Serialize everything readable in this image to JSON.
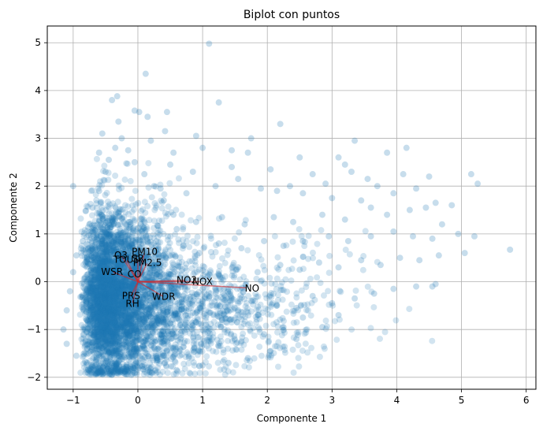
{
  "chart_data": {
    "type": "scatter",
    "title": "Biplot con puntos",
    "xlabel": "Componente 1",
    "ylabel": "Componente 2",
    "xlim": [
      -1.4,
      6.15
    ],
    "ylim": [
      -2.25,
      5.35
    ],
    "xticks": [
      -1,
      0,
      1,
      2,
      3,
      4,
      5,
      6
    ],
    "yticks": [
      -2,
      -1,
      0,
      1,
      2,
      3,
      4,
      5
    ],
    "grid": true,
    "point_color": "#1f77b4",
    "point_alpha": 0.2,
    "vector_color": "#d62728",
    "points": [
      [
        1.1,
        4.98
      ],
      [
        0.12,
        4.35
      ],
      [
        -0.32,
        3.88
      ],
      [
        -0.4,
        3.8
      ],
      [
        -0.05,
        3.58
      ],
      [
        0.02,
        3.55
      ],
      [
        0.45,
        3.55
      ],
      [
        0.42,
        3.15
      ],
      [
        1.25,
        3.75
      ],
      [
        2.2,
        3.3
      ],
      [
        3.35,
        2.95
      ],
      [
        -0.55,
        3.1
      ],
      [
        0.9,
        3.05
      ],
      [
        1.75,
        3.0
      ],
      [
        0.2,
        2.95
      ],
      [
        0.55,
        2.7
      ],
      [
        1.0,
        2.8
      ],
      [
        1.45,
        2.75
      ],
      [
        1.7,
        2.7
      ],
      [
        2.5,
        2.6
      ],
      [
        3.1,
        2.6
      ],
      [
        3.85,
        2.7
      ],
      [
        4.15,
        2.8
      ],
      [
        0.85,
        2.3
      ],
      [
        1.45,
        2.4
      ],
      [
        2.05,
        2.35
      ],
      [
        2.7,
        2.25
      ],
      [
        3.2,
        2.45
      ],
      [
        3.3,
        2.3
      ],
      [
        3.55,
        2.15
      ],
      [
        4.1,
        2.25
      ],
      [
        4.5,
        2.2
      ],
      [
        5.15,
        2.25
      ],
      [
        5.25,
        2.05
      ],
      [
        4.3,
        1.95
      ],
      [
        3.95,
        1.85
      ],
      [
        3.45,
        1.7
      ],
      [
        3.0,
        1.75
      ],
      [
        2.55,
        1.85
      ],
      [
        2.15,
        1.9
      ],
      [
        1.9,
        1.95
      ],
      [
        1.2,
        2.0
      ],
      [
        0.75,
        1.85
      ],
      [
        0.35,
        1.95
      ],
      [
        4.6,
        1.65
      ],
      [
        4.85,
        1.6
      ],
      [
        4.45,
        1.55
      ],
      [
        4.2,
        1.5
      ],
      [
        3.85,
        1.4
      ],
      [
        3.6,
        1.55
      ],
      [
        3.2,
        1.3
      ],
      [
        2.85,
        1.4
      ],
      [
        2.4,
        1.25
      ],
      [
        2.1,
        1.35
      ],
      [
        1.65,
        1.2
      ],
      [
        1.3,
        1.35
      ],
      [
        0.9,
        1.25
      ],
      [
        0.6,
        1.1
      ],
      [
        4.7,
        1.2
      ],
      [
        4.95,
        1.0
      ],
      [
        5.2,
        0.95
      ],
      [
        4.55,
        0.9
      ],
      [
        4.25,
        0.95
      ],
      [
        3.95,
        1.05
      ],
      [
        3.6,
        0.95
      ],
      [
        3.25,
        0.85
      ],
      [
        2.95,
        0.95
      ],
      [
        2.55,
        0.85
      ],
      [
        2.25,
        0.75
      ],
      [
        1.95,
        0.85
      ],
      [
        1.6,
        0.7
      ],
      [
        1.25,
        0.8
      ],
      [
        0.95,
        0.6
      ],
      [
        0.7,
        0.75
      ],
      [
        5.75,
        0.67
      ],
      [
        5.05,
        0.6
      ],
      [
        4.65,
        0.55
      ],
      [
        4.35,
        0.45
      ],
      [
        4.05,
        0.5
      ],
      [
        3.75,
        0.35
      ],
      [
        3.45,
        0.45
      ],
      [
        3.1,
        0.3
      ],
      [
        2.8,
        0.4
      ],
      [
        2.5,
        0.25
      ],
      [
        2.2,
        0.35
      ],
      [
        1.85,
        0.2
      ],
      [
        1.55,
        0.3
      ],
      [
        1.25,
        0.15
      ],
      [
        0.95,
        0.25
      ],
      [
        4.6,
        -0.05
      ],
      [
        4.3,
        -0.1
      ],
      [
        4.55,
        -0.1
      ],
      [
        3.95,
        -0.15
      ],
      [
        3.65,
        -0.25
      ],
      [
        3.35,
        -0.35
      ],
      [
        3.0,
        -0.45
      ],
      [
        2.7,
        -0.3
      ],
      [
        2.45,
        -0.55
      ],
      [
        2.15,
        -0.5
      ],
      [
        1.85,
        -0.7
      ],
      [
        1.55,
        -0.6
      ],
      [
        1.3,
        -0.8
      ],
      [
        1.05,
        -0.9
      ],
      [
        0.75,
        -1.0
      ],
      [
        2.55,
        -0.75
      ],
      [
        2.25,
        -0.95
      ],
      [
        1.95,
        -1.1
      ],
      [
        1.6,
        -1.25
      ],
      [
        1.25,
        -1.35
      ],
      [
        0.95,
        -1.45
      ],
      [
        0.65,
        -1.55
      ],
      [
        0.3,
        -1.6
      ],
      [
        3.1,
        -0.7
      ],
      [
        2.85,
        -0.95
      ],
      [
        2.45,
        -1.2
      ],
      [
        2.05,
        -1.45
      ],
      [
        1.7,
        -1.6
      ],
      [
        1.4,
        -1.7
      ],
      [
        1.0,
        -1.75
      ],
      [
        0.6,
        -1.85
      ],
      [
        0.2,
        -1.9
      ],
      [
        -0.1,
        -1.95
      ],
      [
        -0.4,
        -1.85
      ],
      [
        -0.7,
        -1.75
      ],
      [
        -0.95,
        -1.55
      ],
      [
        -1.1,
        -1.3
      ],
      [
        -1.15,
        -1.0
      ],
      [
        -1.1,
        -0.6
      ],
      [
        -1.05,
        -0.2
      ],
      [
        -1.0,
        0.2
      ],
      [
        -0.95,
        0.55
      ],
      [
        -0.85,
        0.85
      ],
      [
        -0.75,
        1.2
      ],
      [
        -0.7,
        1.55
      ],
      [
        -0.6,
        1.9
      ],
      [
        -0.5,
        2.3
      ],
      [
        -0.45,
        2.55
      ],
      [
        -0.35,
        2.8
      ],
      [
        -0.25,
        3.0
      ],
      [
        -0.15,
        2.75
      ],
      [
        -0.05,
        2.5
      ],
      [
        0.1,
        2.25
      ],
      [
        0.25,
        2.0
      ],
      [
        0.4,
        1.7
      ],
      [
        0.55,
        1.4
      ],
      [
        -1.0,
        2.0
      ],
      [
        -0.3,
        3.35
      ],
      [
        0.15,
        3.45
      ],
      [
        -0.6,
        2.7
      ],
      [
        0.5,
        2.45
      ],
      [
        1.55,
        2.15
      ],
      [
        2.35,
        2.0
      ],
      [
        2.9,
        2.05
      ],
      [
        3.7,
        2.0
      ]
    ],
    "vectors": [
      {
        "name": "O3",
        "x": -0.25,
        "y": 0.53
      },
      {
        "name": "TOUT",
        "x": -0.17,
        "y": 0.44
      },
      {
        "name": "SR",
        "x": 0.0,
        "y": 0.46
      },
      {
        "name": "PM10",
        "x": 0.1,
        "y": 0.6
      },
      {
        "name": "PM2.5",
        "x": 0.14,
        "y": 0.38
      },
      {
        "name": "WSR",
        "x": -0.38,
        "y": 0.2
      },
      {
        "name": "CO",
        "x": -0.05,
        "y": 0.15
      },
      {
        "name": "NO2",
        "x": 0.72,
        "y": 0.03
      },
      {
        "name": "NOX",
        "x": 0.95,
        "y": 0.0
      },
      {
        "name": "NO",
        "x": 1.68,
        "y": -0.13
      },
      {
        "name": "PRS",
        "x": -0.1,
        "y": -0.28
      },
      {
        "name": "RH",
        "x": -0.08,
        "y": -0.44
      },
      {
        "name": "WDR",
        "x": 0.38,
        "y": -0.3
      }
    ]
  }
}
